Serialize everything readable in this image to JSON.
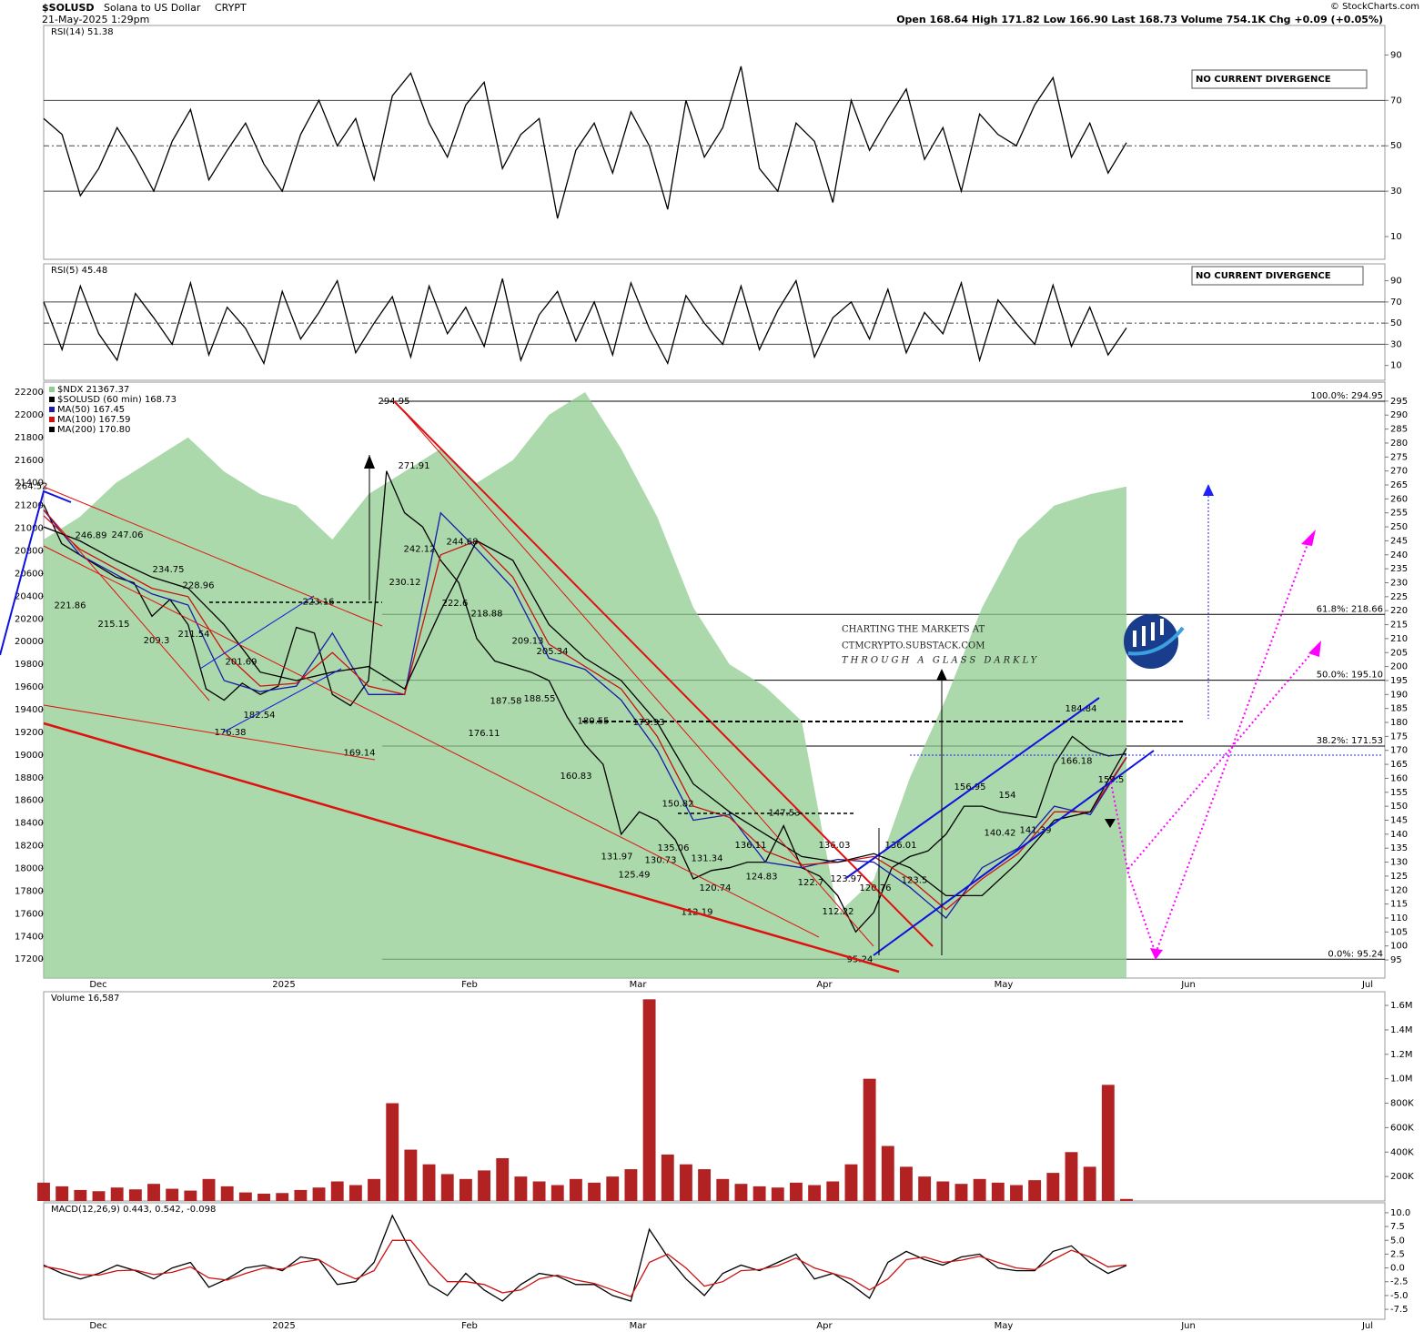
{
  "header": {
    "symbol": "$SOLUSD",
    "name": "Solana to US Dollar",
    "exchange": "CRYPT",
    "date": "21-May-2025 1:29pm",
    "quote": "Open 168.64 High 171.82 Low 166.90 Last 168.73 Volume 754.1K Chg +0.09 (+0.05%)",
    "copyright": "© StockCharts.com"
  },
  "watermark": [
    "CHARTING THE MARKETS AT",
    "CTMCRYPTO.SUBSTACK.COM",
    "THROUGH A GLASS DARKLY"
  ],
  "chart_data": [
    {
      "type": "line",
      "title": "RSI(14) 51.38",
      "annotation": "NO CURRENT DIVERGENCE",
      "ylim": [
        0,
        103
      ],
      "yticks": [
        10,
        30,
        50,
        70,
        90
      ],
      "hlines": [
        30,
        50,
        70
      ],
      "series": [
        {
          "color": "#000000",
          "values": [
            62,
            55,
            28,
            40,
            58,
            45,
            30,
            52,
            66,
            35,
            48,
            60,
            42,
            30,
            55,
            70,
            50,
            62,
            35,
            72,
            82,
            60,
            45,
            68,
            78,
            40,
            55,
            62,
            18,
            48,
            60,
            38,
            65,
            50,
            22,
            70,
            45,
            58,
            85,
            40,
            30,
            60,
            52,
            25,
            70,
            48,
            62,
            75,
            44,
            58,
            30,
            64,
            55,
            50,
            68,
            80,
            45,
            60,
            38,
            51.38
          ]
        }
      ]
    },
    {
      "type": "line",
      "title": "RSI(5) 45.48",
      "annotation": "NO CURRENT DIVERGENCE",
      "ylim": [
        -4,
        106
      ],
      "yticks": [
        10,
        30,
        50,
        70,
        90
      ],
      "hlines": [
        30,
        50,
        70
      ],
      "series": [
        {
          "color": "#000000",
          "values": [
            70,
            25,
            85,
            40,
            15,
            78,
            55,
            30,
            88,
            20,
            65,
            45,
            12,
            80,
            35,
            60,
            90,
            22,
            50,
            75,
            18,
            85,
            40,
            65,
            28,
            92,
            15,
            58,
            80,
            33,
            70,
            20,
            88,
            45,
            12,
            76,
            50,
            30,
            85,
            25,
            62,
            90,
            18,
            55,
            70,
            35,
            82,
            22,
            60,
            40,
            88,
            15,
            72,
            50,
            30,
            86,
            28,
            65,
            20,
            45.48
          ]
        }
      ]
    },
    {
      "type": "line",
      "ylim": [
        88.5,
        301.8
      ],
      "yticks": [
        95,
        100,
        105,
        110,
        115,
        120,
        125,
        130,
        135,
        140,
        145,
        150,
        155,
        160,
        165,
        170,
        175,
        180,
        185,
        190,
        195,
        200,
        205,
        210,
        215,
        220,
        225,
        230,
        235,
        240,
        245,
        250,
        255,
        260,
        265,
        270,
        275,
        280,
        285,
        290,
        295
      ],
      "y2lim": [
        17033,
        22288
      ],
      "y2ticks": [
        17200,
        17400,
        17600,
        17800,
        18000,
        18200,
        18400,
        18600,
        18800,
        19000,
        19200,
        19400,
        19600,
        19800,
        20000,
        20200,
        20400,
        20600,
        20800,
        21000,
        21200,
        21400,
        21600,
        21800,
        22000,
        22200
      ],
      "x_labels": [
        "Dec",
        "2025",
        "Feb",
        "Mar",
        "Apr",
        "May",
        "Jun",
        "Jul"
      ],
      "series": [
        {
          "name": "$NDX 21367.37",
          "color": "#8fcc8f",
          "axis": "y2",
          "values": [
            20900,
            21100,
            21400,
            21600,
            21800,
            21500,
            21300,
            21200,
            20900,
            21300,
            21500,
            21700,
            21400,
            21600,
            22000,
            22200,
            21700,
            21100,
            20300,
            19800,
            19600,
            19300,
            17600,
            17900,
            18800,
            19500,
            20300,
            20900,
            21200,
            21300,
            21367.37
          ]
        },
        {
          "name": "$SOLUSD (60 min) 168.73",
          "color": "#000000",
          "values": [
            258,
            244,
            240,
            236,
            232,
            230,
            218,
            224,
            215,
            192,
            188,
            194,
            190,
            193,
            214,
            212,
            190,
            186,
            195,
            270,
            255,
            250,
            238,
            230,
            210,
            202,
            200,
            198,
            195,
            182,
            172,
            165,
            140,
            148,
            145,
            138,
            124,
            127,
            128,
            130,
            130,
            143,
            128,
            125,
            118,
            105,
            112,
            128,
            132,
            134,
            140,
            150,
            150,
            148,
            147,
            146,
            165,
            175,
            170,
            168,
            168.73
          ]
        },
        {
          "name": "MA(50) 167.45",
          "color": "#1a1aa8",
          "values": [
            256,
            240,
            233,
            226,
            222,
            195,
            191,
            193,
            212,
            190,
            190,
            255,
            242,
            228,
            203,
            199,
            188,
            170,
            145,
            147,
            130,
            128,
            131,
            130,
            121,
            110,
            128,
            135,
            150,
            147,
            167.45
          ]
        },
        {
          "name": "MA(100) 167.59",
          "color": "#cc1111",
          "values": [
            254,
            242,
            235,
            228,
            225,
            205,
            193,
            194,
            205,
            193,
            190,
            240,
            245,
            232,
            208,
            200,
            192,
            175,
            150,
            146,
            134,
            129,
            130,
            132,
            124,
            113,
            124,
            133,
            148,
            148,
            167.59
          ]
        },
        {
          "name": "MA(200) 170.80",
          "color": "#000000",
          "values": [
            250,
            245,
            238,
            232,
            228,
            215,
            198,
            195,
            198,
            200,
            192,
            220,
            245,
            238,
            215,
            203,
            195,
            180,
            158,
            148,
            140,
            132,
            130,
            133,
            128,
            118,
            118,
            130,
            145,
            148,
            170.8
          ]
        }
      ],
      "fib": [
        {
          "label": "100.0%: 294.95",
          "value": 294.95
        },
        {
          "label": "61.8%: 218.66",
          "value": 218.66
        },
        {
          "label": "50.0%: 195.10",
          "value": 195.1
        },
        {
          "label": "38.2%: 171.53",
          "value": 171.53
        },
        {
          "label": "0.0%: 95.24",
          "value": 95.24
        }
      ],
      "price_labels": [
        264.52,
        246.89,
        247.06,
        234.75,
        228.96,
        221.86,
        215.15,
        209.3,
        211.54,
        201.69,
        223.16,
        182.54,
        176.38,
        169.14,
        294.95,
        271.91,
        242.12,
        230.12,
        244.68,
        222.6,
        218.88,
        209.13,
        205.34,
        187.58,
        188.55,
        176.11,
        180.55,
        179.93,
        160.83,
        150.82,
        131.97,
        125.49,
        130.73,
        135.06,
        131.34,
        136.11,
        147.53,
        136.03,
        124.83,
        122.7,
        120.74,
        112.19,
        123.97,
        120.76,
        112.22,
        95.24,
        136.01,
        123.5,
        156.95,
        154.0,
        140.42,
        141.39,
        184.84,
        166.18,
        159.5
      ]
    },
    {
      "type": "bar",
      "title": "Volume 16,587",
      "color": "#b22222",
      "ylim": [
        0,
        1712000
      ],
      "yticks": [
        {
          "value": 200000,
          "label": "200K"
        },
        {
          "value": 400000,
          "label": "400K"
        },
        {
          "value": 600000,
          "label": "600K"
        },
        {
          "value": 800000,
          "label": "800K"
        },
        {
          "value": 1000000,
          "label": "1.0M"
        },
        {
          "value": 1200000,
          "label": "1.2M"
        },
        {
          "value": 1400000,
          "label": "1.4M"
        },
        {
          "value": 1600000,
          "label": "1.6M"
        }
      ],
      "values": [
        150000,
        120000,
        90000,
        80000,
        110000,
        95000,
        140000,
        100000,
        85000,
        180000,
        120000,
        70000,
        60000,
        65000,
        90000,
        110000,
        160000,
        130000,
        180000,
        800000,
        420000,
        300000,
        220000,
        180000,
        250000,
        350000,
        200000,
        160000,
        130000,
        180000,
        150000,
        200000,
        260000,
        1650000,
        380000,
        300000,
        260000,
        180000,
        140000,
        120000,
        110000,
        150000,
        130000,
        160000,
        300000,
        1000000,
        450000,
        280000,
        200000,
        160000,
        140000,
        180000,
        150000,
        130000,
        170000,
        230000,
        400000,
        280000,
        950000,
        16587
      ]
    },
    {
      "type": "line",
      "title": "MACD(12,26,9) 0.443, 0.542, -0.098",
      "ylim": [
        -9.3,
        11.8
      ],
      "yticks": [
        {
          "value": 10,
          "label": "10.0"
        },
        7.5,
        {
          "value": 5,
          "label": "5.0"
        },
        2.5,
        {
          "value": 0,
          "label": "0.0"
        },
        -2.5,
        {
          "value": -5,
          "label": "-5.0"
        },
        -7.5
      ],
      "x_labels": [
        "Dec",
        "2025",
        "Feb",
        "Mar",
        "Apr",
        "May",
        "Jun",
        "Jul"
      ],
      "series": [
        {
          "color": "#000000",
          "values": [
            0.5,
            -1,
            -2,
            -1,
            0.5,
            -0.5,
            -2,
            0,
            1,
            -3.5,
            -2,
            0,
            0.5,
            -0.5,
            2,
            1.5,
            -3,
            -2.5,
            1,
            9.5,
            3,
            -3,
            -5,
            -1,
            -4,
            -6,
            -3,
            -1,
            -1.5,
            -3,
            -3,
            -5,
            -6,
            7,
            2,
            -2,
            -5,
            -1,
            0.5,
            -0.5,
            1,
            2.5,
            -2,
            -1,
            -3,
            -5.5,
            1,
            3,
            1.5,
            0.5,
            2,
            2.5,
            0,
            -0.5,
            -0.5,
            3,
            4,
            1,
            -1,
            0.443
          ]
        },
        {
          "color": "#cc1111",
          "values": [
            0.3,
            -0.3,
            -1.2,
            -1.3,
            -0.5,
            -0.4,
            -1.2,
            -0.8,
            0.2,
            -1.8,
            -2.2,
            -1,
            0,
            -0.2,
            1,
            1.5,
            -0.5,
            -2,
            -0.5,
            5,
            5,
            1,
            -2.5,
            -2.5,
            -3,
            -4.5,
            -4,
            -2,
            -1.3,
            -2.2,
            -2.8,
            -4,
            -5.2,
            1,
            2.5,
            0,
            -3.3,
            -2.5,
            -0.5,
            -0.3,
            0.4,
            1.8,
            0,
            -1,
            -2,
            -4,
            -2,
            1.5,
            2,
            1,
            1.4,
            2.1,
            1,
            0,
            -0.3,
            1.5,
            3.2,
            2,
            0.2,
            0.542
          ]
        }
      ]
    }
  ]
}
